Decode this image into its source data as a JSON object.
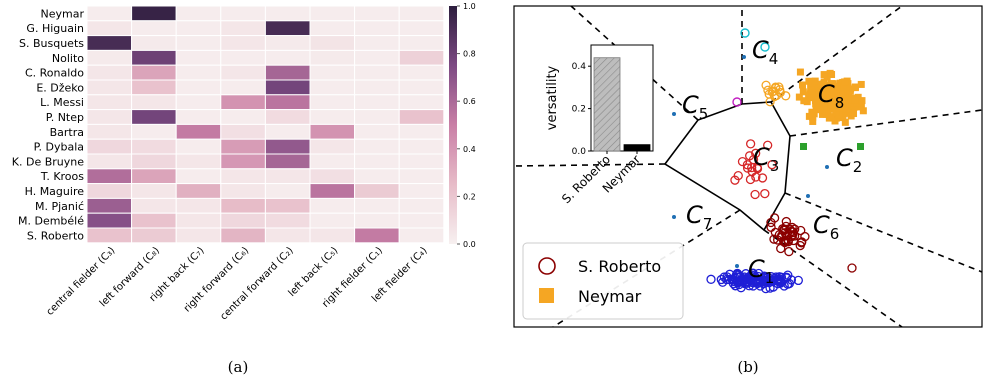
{
  "panels": {
    "a": {
      "caption": "(a)"
    },
    "b": {
      "caption": "(b)"
    }
  },
  "chart_data": [
    {
      "type": "heatmap",
      "title": "",
      "rows": [
        "Neymar",
        "G. Higuain",
        "S. Busquets",
        "Nolito",
        "C. Ronaldo",
        "E. Džeko",
        "L. Messi",
        "P. Ntep",
        "Bartra",
        "P. Dybala",
        "K. De Bruyne",
        "T. Kroos",
        "H. Maguire",
        "M. Pjanić",
        "M. Dembélé",
        "S. Roberto"
      ],
      "columns": [
        "central fielder (C₃)",
        "left forward (C₈)",
        "right back (C₇)",
        "right forward (C₆)",
        "central forward (C₂)",
        "left back (C₅)",
        "right fielder (C₁)",
        "left fielder (C₄)"
      ],
      "values": [
        [
          0.02,
          0.97,
          0.02,
          0.02,
          0.02,
          0.02,
          0.02,
          0.02
        ],
        [
          0.05,
          0.02,
          0.02,
          0.05,
          0.92,
          0.02,
          0.02,
          0.02
        ],
        [
          0.92,
          0.03,
          0.02,
          0.05,
          0.03,
          0.06,
          0.02,
          0.02
        ],
        [
          0.03,
          0.8,
          0.02,
          0.02,
          0.02,
          0.03,
          0.02,
          0.15
        ],
        [
          0.05,
          0.35,
          0.02,
          0.05,
          0.62,
          0.02,
          0.02,
          0.02
        ],
        [
          0.05,
          0.22,
          0.02,
          0.02,
          0.78,
          0.02,
          0.02,
          0.02
        ],
        [
          0.05,
          0.05,
          0.02,
          0.42,
          0.55,
          0.02,
          0.02,
          0.02
        ],
        [
          0.05,
          0.78,
          0.02,
          0.02,
          0.1,
          0.02,
          0.02,
          0.22
        ],
        [
          0.05,
          0.02,
          0.52,
          0.08,
          0.02,
          0.42,
          0.02,
          0.02
        ],
        [
          0.12,
          0.1,
          0.02,
          0.38,
          0.68,
          0.05,
          0.02,
          0.02
        ],
        [
          0.05,
          0.12,
          0.05,
          0.4,
          0.62,
          0.02,
          0.02,
          0.02
        ],
        [
          0.58,
          0.35,
          0.02,
          0.05,
          0.05,
          0.08,
          0.02,
          0.02
        ],
        [
          0.12,
          0.05,
          0.3,
          0.05,
          0.02,
          0.55,
          0.18,
          0.02
        ],
        [
          0.65,
          0.05,
          0.05,
          0.25,
          0.22,
          0.02,
          0.02,
          0.02
        ],
        [
          0.72,
          0.22,
          0.05,
          0.12,
          0.1,
          0.02,
          0.02,
          0.02
        ],
        [
          0.22,
          0.18,
          0.05,
          0.28,
          0.05,
          0.05,
          0.52,
          0.02
        ]
      ],
      "colorbar": {
        "range": [
          0.0,
          1.0
        ],
        "ticks": [
          "0.0",
          "0.2",
          "0.4",
          "0.6",
          "0.8",
          "1.0"
        ]
      },
      "colors": {
        "low": "#f7f0f0",
        "mid": "#c97fa6",
        "high": "#2d1e3e"
      }
    },
    {
      "type": "scatter",
      "title": "",
      "cluster_labels": [
        {
          "base": "C",
          "sub": "1"
        },
        {
          "base": "C",
          "sub": "2"
        },
        {
          "base": "C",
          "sub": "3"
        },
        {
          "base": "C",
          "sub": "4"
        },
        {
          "base": "C",
          "sub": "5"
        },
        {
          "base": "C",
          "sub": "6"
        },
        {
          "base": "C",
          "sub": "7"
        },
        {
          "base": "C",
          "sub": "8"
        }
      ],
      "legend": [
        {
          "label": "S. Roberto",
          "marker": "circle-open",
          "color": "#8b0000"
        },
        {
          "label": "Neymar",
          "marker": "square",
          "color": "#f5a623"
        }
      ],
      "inset": {
        "type": "bar",
        "ylabel": "versatility",
        "categories": [
          "S. Roberto",
          "Neymar"
        ],
        "values": [
          0.44,
          0.03
        ],
        "ylim": [
          0,
          0.5
        ],
        "yticks": [
          "0.0",
          "0.2",
          "0.4"
        ],
        "colors": [
          "#bbbbbb",
          "#000000"
        ]
      },
      "colors": {
        "neymar": "#f5a623",
        "roberto_c3": "#d62728",
        "roberto_c1": "#1f1fd6",
        "roberto_c6": "#8b0000",
        "roberto_c8": "#f5a623",
        "c4_ring": "#17becf",
        "c5_ring": "#c21fc2",
        "c2_square": "#2ca02c",
        "centroid": "#1f6fb4"
      }
    }
  ]
}
